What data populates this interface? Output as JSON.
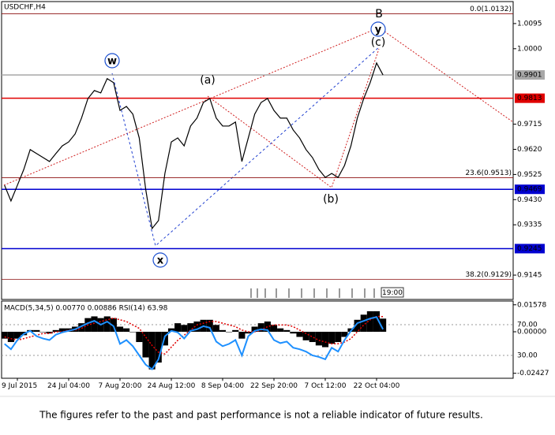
{
  "chart_data": [
    {
      "type": "line",
      "title": "USDCHF,H4",
      "color": "#000000",
      "values": [
        0.9484,
        0.9425,
        0.9484,
        0.9544,
        0.9619,
        0.9604,
        0.9589,
        0.9574,
        0.9604,
        0.9633,
        0.9648,
        0.9678,
        0.9738,
        0.9812,
        0.9842,
        0.9833,
        0.9887,
        0.9872,
        0.9767,
        0.9782,
        0.9753,
        0.9663,
        0.947,
        0.9321,
        0.9351,
        0.9529,
        0.9648,
        0.9663,
        0.9633,
        0.9708,
        0.9738,
        0.9797,
        0.9812,
        0.9738,
        0.9708,
        0.9708,
        0.9723,
        0.9574,
        0.9663,
        0.9753,
        0.9797,
        0.9812,
        0.9767,
        0.9738,
        0.9738,
        0.9693,
        0.9663,
        0.9619,
        0.9589,
        0.9544,
        0.9514,
        0.9529,
        0.9514,
        0.9559,
        0.9633,
        0.9738,
        0.9812,
        0.9872,
        0.9946,
        0.9901,
        null,
        null,
        null,
        null,
        null,
        null,
        null,
        null,
        null,
        null,
        null,
        null,
        null,
        null,
        null,
        null,
        null,
        null,
        null,
        null
      ],
      "ylim": [
        0.9053,
        1.0178
      ],
      "yticks": [
        1.0095,
        {
          "value": 1,
          "label": "1.0000"
        },
        0.9715,
        {
          "value": 0.962,
          "label": "0.9620"
        },
        0.9525,
        {
          "value": 0.943,
          "label": "0.9430"
        },
        0.9335,
        0.9145
      ],
      "price_levels": [
        {
          "value": 0.9901,
          "color": "#a8a8a8"
        },
        {
          "value": 0.9813,
          "color": "#e00000"
        },
        {
          "value": 0.9469,
          "color": "#0000d0"
        },
        {
          "value": 0.9245,
          "color": "#0000d0"
        }
      ],
      "fib_levels": [
        {
          "value": 1.0132,
          "label": "0.0(1.0132)"
        },
        {
          "value": 0.9513,
          "label": "23.6(0.9513)"
        },
        {
          "value": 0.9129,
          "label": "38.2(0.9129)"
        }
      ],
      "annotations": [
        {
          "text": "w",
          "color": "#1a4fd0",
          "circle": true
        },
        {
          "text": "x",
          "color": "#1a4fd0",
          "circle": true
        },
        {
          "text": "y",
          "color": "#1a4fd0",
          "circle": true
        },
        {
          "text": "B",
          "color": "#c0281e",
          "circle": false
        },
        {
          "text": "(a)",
          "color": "#c0281e",
          "circle": false
        },
        {
          "text": "(b)",
          "color": "#c0281e",
          "circle": false
        },
        {
          "text": "(c)",
          "color": "#c0281e",
          "circle": false
        }
      ],
      "time_box": "19:00"
    },
    {
      "type": "bar",
      "title": "MACD(5,34,5) 0.00770 0.00886 RSI(14) 63.98",
      "categories": [
        null,
        null,
        "9 Jul 2015",
        null,
        null,
        null,
        null,
        null,
        null,
        null,
        "24 Jul 04:00",
        null,
        null,
        null,
        null,
        null,
        null,
        null,
        "7 Aug 20:00",
        null,
        null,
        null,
        null,
        null,
        null,
        null,
        "24 Aug 12:00",
        null,
        null,
        null,
        null,
        null,
        null,
        null,
        "8 Sep 04:00",
        null,
        null,
        null,
        null,
        null,
        null,
        null,
        "22 Sep 20:00",
        null,
        null,
        null,
        null,
        null,
        null,
        null,
        "7 Oct 12:00",
        null,
        null,
        null,
        null,
        null,
        null,
        null,
        "22 Oct 04:00",
        null,
        null,
        null,
        null,
        null,
        null,
        null,
        null,
        null,
        null,
        null,
        null,
        null,
        null,
        null,
        null,
        null,
        null,
        null,
        null,
        null
      ],
      "series": [
        {
          "type": "bar",
          "axis": "y2",
          "color": "#000000",
          "values": [
            -0.004,
            -0.006,
            -0.004,
            -0.002,
            0.001,
            0.001,
            0.0,
            -0.001,
            0.001,
            0.002,
            0.002,
            0.003,
            0.005,
            0.008,
            0.009,
            0.008,
            0.009,
            0.008,
            0.003,
            0.002,
            0.0,
            -0.006,
            -0.015,
            -0.022,
            -0.018,
            -0.008,
            0.002,
            0.005,
            0.004,
            0.005,
            0.006,
            0.007,
            0.007,
            0.004,
            0.001,
            0.0,
            0.001,
            -0.004,
            -0.001,
            0.003,
            0.005,
            0.006,
            0.004,
            0.002,
            0.001,
            -0.001,
            -0.003,
            -0.005,
            -0.006,
            -0.008,
            -0.009,
            -0.007,
            -0.006,
            -0.003,
            0.002,
            0.007,
            0.01,
            0.012,
            0.012,
            0.0077,
            null,
            null,
            null,
            null,
            null,
            null,
            null,
            null,
            null,
            null,
            null,
            null,
            null,
            null,
            null,
            null,
            null,
            null,
            null,
            null
          ]
        },
        {
          "type": "line",
          "axis": "y2",
          "color": "#e00000",
          "values": [
            -0.003,
            -0.004,
            -0.005,
            -0.004,
            -0.003,
            -0.002,
            -0.001,
            -0.001,
            0.0,
            0.0,
            0.001,
            0.001,
            0.002,
            0.004,
            0.005,
            0.006,
            0.007,
            0.008,
            0.007,
            0.006,
            0.004,
            0.002,
            -0.003,
            -0.008,
            -0.012,
            -0.013,
            -0.009,
            -0.005,
            -0.002,
            0.001,
            0.004,
            0.005,
            0.006,
            0.006,
            0.005,
            0.004,
            0.003,
            0.001,
            0.0,
            0.0,
            0.001,
            0.003,
            0.004,
            0.004,
            0.004,
            0.003,
            0.001,
            -0.001,
            -0.003,
            -0.005,
            -0.006,
            -0.007,
            -0.007,
            -0.006,
            -0.004,
            0.0,
            0.004,
            0.007,
            0.009,
            0.00886,
            null,
            null,
            null,
            null,
            null,
            null,
            null,
            null,
            null,
            null,
            null,
            null,
            null,
            null,
            null,
            null,
            null,
            null,
            null,
            null
          ]
        },
        {
          "type": "line",
          "color": "#1e90ff",
          "values": [
            45,
            38,
            50,
            58,
            62,
            55,
            52,
            50,
            57,
            60,
            62,
            64,
            68,
            72,
            75,
            70,
            74,
            68,
            45,
            50,
            42,
            30,
            18,
            12,
            25,
            55,
            62,
            60,
            52,
            62,
            64,
            68,
            66,
            48,
            42,
            45,
            50,
            30,
            55,
            62,
            64,
            63,
            50,
            46,
            48,
            40,
            38,
            35,
            30,
            28,
            25,
            40,
            35,
            50,
            62,
            72,
            75,
            78,
            80,
            63.98,
            null,
            null,
            null,
            null,
            null,
            null,
            null,
            null,
            null,
            null,
            null,
            null,
            null,
            null,
            null,
            null,
            null,
            null,
            null,
            null
          ]
        }
      ],
      "ylim": [
        0,
        100
      ],
      "yticks": [
        {
          "value": 70,
          "label": "70.00"
        },
        {
          "value": 30,
          "label": "30.00"
        }
      ],
      "y2lim": [
        -0.0273,
        0.01763
      ],
      "y2ticks": [
        0.01578,
        {
          "value": 0,
          "label": "0.00000"
        },
        -0.02427
      ]
    }
  ],
  "footer": "The figures refer to the past and past performance is not a reliable indicator of future results."
}
